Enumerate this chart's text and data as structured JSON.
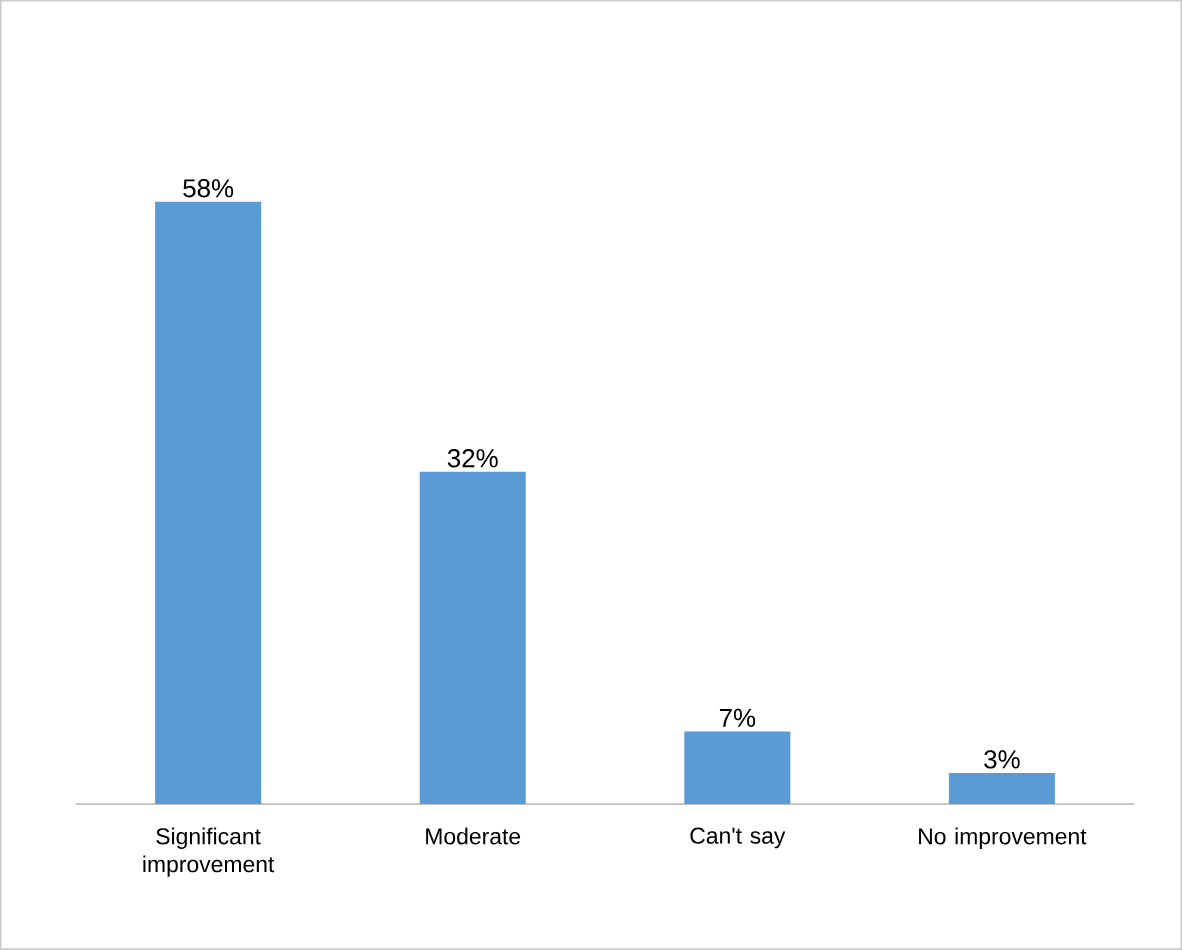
{
  "chart_data": {
    "type": "bar",
    "categories": [
      "Significant improvement",
      "Moderate",
      "Can't say",
      "No improvement"
    ],
    "values": [
      58,
      32,
      7,
      3
    ],
    "value_labels": [
      "58%",
      "32%",
      "7%",
      "3%"
    ],
    "color": "#5b9bd5"
  }
}
